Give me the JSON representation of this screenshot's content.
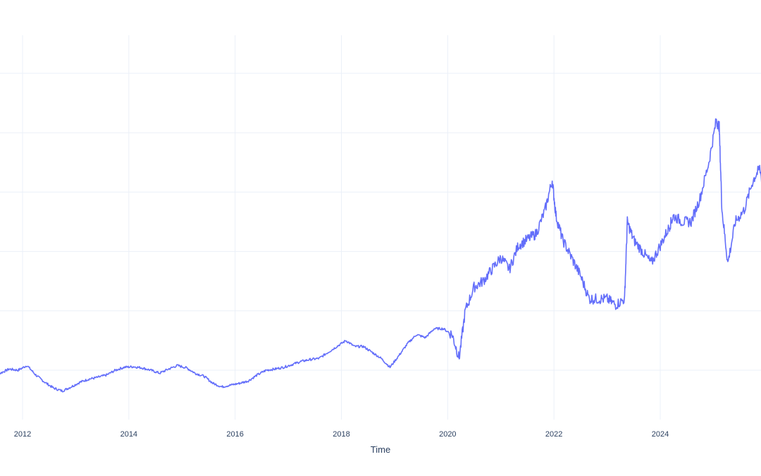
{
  "chart_data": {
    "type": "line",
    "title": "",
    "xlabel": "Time",
    "ylabel": "",
    "x_ticks": [
      "2012",
      "2014",
      "2016",
      "2018",
      "2020",
      "2022",
      "2024"
    ],
    "xlim": [
      "2011-06-01",
      "2025-12-31"
    ],
    "ylim": [
      0,
      6.8
    ],
    "grid": true,
    "legend": "none",
    "series": [
      {
        "color": "#636efa",
        "x": [
          "2011-06-01",
          "2011-08-01",
          "2011-10-01",
          "2011-12-01",
          "2012-02-01",
          "2012-04-01",
          "2012-06-01",
          "2012-08-01",
          "2012-10-01",
          "2012-12-01",
          "2013-02-01",
          "2013-04-01",
          "2013-06-01",
          "2013-08-01",
          "2013-10-01",
          "2013-12-01",
          "2014-02-01",
          "2014-04-01",
          "2014-06-01",
          "2014-08-01",
          "2014-10-01",
          "2014-12-01",
          "2015-02-01",
          "2015-04-01",
          "2015-06-01",
          "2015-08-01",
          "2015-10-01",
          "2015-12-01",
          "2016-02-01",
          "2016-04-01",
          "2016-06-01",
          "2016-08-01",
          "2016-10-01",
          "2016-12-01",
          "2017-02-01",
          "2017-04-01",
          "2017-06-01",
          "2017-08-01",
          "2017-10-01",
          "2017-12-01",
          "2018-02-01",
          "2018-04-01",
          "2018-06-01",
          "2018-08-01",
          "2018-10-01",
          "2018-12-01",
          "2019-02-01",
          "2019-04-01",
          "2019-06-01",
          "2019-08-01",
          "2019-10-01",
          "2019-12-01",
          "2020-02-01",
          "2020-03-20",
          "2020-05-01",
          "2020-07-01",
          "2020-09-01",
          "2020-11-01",
          "2021-01-01",
          "2021-03-01",
          "2021-05-01",
          "2021-07-01",
          "2021-09-01",
          "2021-11-01",
          "2021-12-20",
          "2022-01-15",
          "2022-03-01",
          "2022-05-01",
          "2022-07-01",
          "2022-09-01",
          "2022-11-01",
          "2023-01-01",
          "2023-03-01",
          "2023-05-01",
          "2023-05-20",
          "2023-07-01",
          "2023-09-01",
          "2023-11-01",
          "2024-01-01",
          "2024-03-01",
          "2024-04-01",
          "2024-06-01",
          "2024-08-01",
          "2024-10-01",
          "2024-12-01",
          "2025-01-20",
          "2025-02-10",
          "2025-03-01",
          "2025-04-10",
          "2025-06-01",
          "2025-08-01",
          "2025-10-01",
          "2025-11-15",
          "2025-12-31"
        ],
        "y": [
          1.7,
          1.75,
          1.82,
          1.8,
          1.88,
          1.72,
          1.6,
          1.5,
          1.45,
          1.52,
          1.6,
          1.65,
          1.68,
          1.72,
          1.8,
          1.85,
          1.86,
          1.84,
          1.8,
          1.75,
          1.82,
          1.88,
          1.84,
          1.75,
          1.7,
          1.58,
          1.52,
          1.55,
          1.58,
          1.62,
          1.72,
          1.8,
          1.82,
          1.85,
          1.9,
          1.95,
          1.98,
          2.0,
          2.1,
          2.2,
          2.3,
          2.2,
          2.2,
          2.1,
          2.0,
          1.85,
          2.05,
          2.25,
          2.4,
          2.35,
          2.5,
          2.5,
          2.4,
          2.0,
          2.8,
          3.2,
          3.3,
          3.5,
          3.7,
          3.5,
          3.9,
          4.0,
          4.1,
          4.5,
          5.0,
          4.4,
          4.0,
          3.7,
          3.4,
          3.0,
          3.0,
          3.0,
          2.9,
          3.0,
          4.3,
          4.0,
          3.8,
          3.6,
          3.9,
          4.2,
          4.4,
          4.3,
          4.3,
          4.7,
          5.3,
          6.0,
          5.9,
          4.5,
          3.6,
          4.3,
          4.5,
          5.0,
          5.2,
          4.6
        ]
      }
    ]
  }
}
